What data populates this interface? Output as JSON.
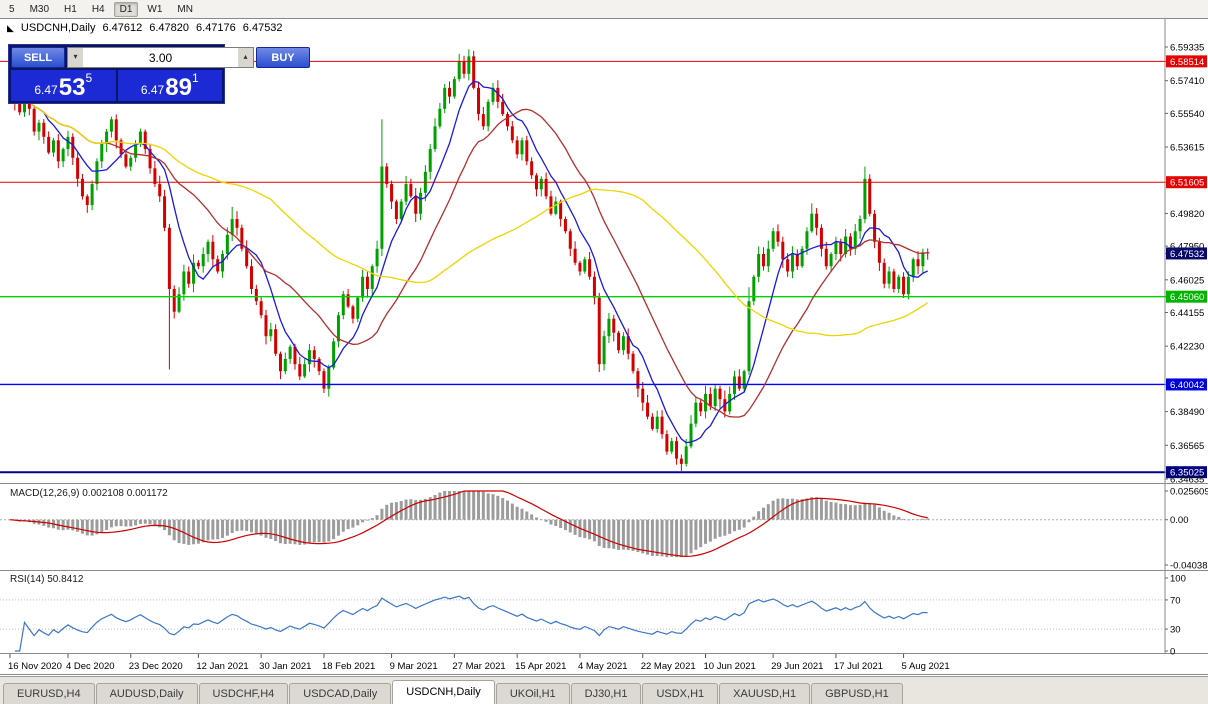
{
  "toolbar": {
    "timeframes": [
      {
        "label": "5",
        "active": false
      },
      {
        "label": "M30",
        "active": false
      },
      {
        "label": "H1",
        "active": false
      },
      {
        "label": "H4",
        "active": false
      },
      {
        "label": "D1",
        "active": true
      },
      {
        "label": "W1",
        "active": false
      },
      {
        "label": "MN",
        "active": false
      }
    ]
  },
  "window": {
    "title": {
      "symbol_period": "USDCNH,Daily",
      "open": "6.47612",
      "high": "6.47820",
      "low": "6.47176",
      "close": "6.47532"
    }
  },
  "trade_panel": {
    "sell_label": "SELL",
    "buy_label": "BUY",
    "lot_value": "3.00",
    "sell_price": {
      "prefix": "6.47",
      "big": "53",
      "sup": "5"
    },
    "buy_price": {
      "prefix": "6.47",
      "big": "89",
      "sup": "1"
    }
  },
  "chart_data": {
    "type": "candlestick",
    "symbol": "USDCNH",
    "timeframe": "Daily",
    "current_bar": {
      "open": 6.47612,
      "high": 6.4782,
      "low": 6.47176,
      "close": 6.47532
    },
    "up_color": "#00a000",
    "down_color": "#d40000",
    "price_axis": {
      "top": 6.5985,
      "bottom": 6.3435,
      "ticks": [
        {
          "label": "6.59335"
        },
        {
          "label": "6.58514",
          "bg": "#e60000"
        },
        {
          "label": "6.57410"
        },
        {
          "label": "6.55540"
        },
        {
          "label": "6.53615"
        },
        {
          "label": "6.51605",
          "bg": "#e60000"
        },
        {
          "label": "6.49820"
        },
        {
          "label": "6.47950"
        },
        {
          "label": "6.47532",
          "bg": "#09096b"
        },
        {
          "label": "6.46025"
        },
        {
          "label": "6.45060",
          "bg": "#00b400"
        },
        {
          "label": "6.44155"
        },
        {
          "label": "6.42230"
        },
        {
          "label": "6.40042",
          "bg": "#0000dc"
        },
        {
          "label": "6.38490"
        },
        {
          "label": "6.36565"
        },
        {
          "label": "6.35025",
          "bg": "#000080"
        },
        {
          "label": "6.34635"
        }
      ]
    },
    "hlines": [
      {
        "value": 6.58514,
        "color": "#e60000",
        "width": 1
      },
      {
        "value": 6.51605,
        "color": "#e60000",
        "width": 1
      },
      {
        "value": 6.4506,
        "color": "#00d200",
        "width": 1.4
      },
      {
        "value": 6.40042,
        "color": "#0000ff",
        "width": 1.4
      },
      {
        "value": 6.35025,
        "color": "#000090",
        "width": 2
      }
    ],
    "current_price": {
      "value": 6.47532,
      "label": "6.47532",
      "bg": "#09096b"
    },
    "moving_averages": [
      {
        "period": 8,
        "color": "#1a1ae0"
      },
      {
        "period": 21,
        "color": "#b03030"
      },
      {
        "period": 55,
        "color": "#eed400"
      }
    ],
    "first_open": 6.574,
    "closes": [
      6.57,
      6.562,
      6.556,
      6.565,
      6.558,
      6.545,
      6.55,
      6.542,
      6.533,
      6.54,
      6.528,
      6.535,
      6.542,
      6.53,
      6.518,
      6.508,
      6.503,
      6.515,
      6.528,
      6.538,
      6.545,
      6.552,
      6.54,
      6.532,
      6.525,
      6.53,
      6.538,
      6.545,
      6.535,
      6.524,
      6.515,
      6.508,
      6.49,
      6.455,
      6.442,
      6.452,
      6.465,
      6.458,
      6.47,
      6.468,
      6.475,
      6.482,
      6.472,
      6.465,
      6.475,
      6.486,
      6.495,
      6.49,
      6.478,
      6.468,
      6.455,
      6.448,
      6.44,
      6.428,
      6.432,
      6.418,
      6.408,
      6.415,
      6.422,
      6.412,
      6.405,
      6.412,
      6.42,
      6.415,
      6.408,
      6.398,
      6.41,
      6.425,
      6.44,
      6.452,
      6.445,
      6.438,
      6.45,
      6.462,
      6.455,
      6.468,
      6.478,
      6.525,
      6.515,
      6.505,
      6.495,
      6.505,
      6.515,
      6.508,
      6.498,
      6.51,
      6.522,
      6.535,
      6.548,
      6.558,
      6.57,
      6.565,
      6.575,
      6.585,
      6.578,
      6.588,
      6.57,
      6.555,
      6.548,
      6.562,
      6.57,
      6.562,
      6.555,
      6.548,
      6.54,
      6.532,
      6.54,
      6.528,
      6.52,
      6.512,
      6.518,
      6.508,
      6.498,
      6.505,
      6.495,
      6.488,
      6.478,
      6.47,
      6.465,
      6.472,
      6.462,
      6.45,
      6.412,
      6.428,
      6.438,
      6.43,
      6.42,
      6.428,
      6.418,
      6.408,
      6.398,
      6.39,
      6.382,
      6.375,
      6.382,
      6.372,
      6.362,
      6.368,
      6.358,
      6.355,
      6.365,
      6.378,
      6.39,
      6.385,
      6.395,
      6.388,
      6.398,
      6.392,
      6.385,
      6.395,
      6.405,
      6.398,
      6.408,
      6.448,
      6.462,
      6.475,
      6.468,
      6.478,
      6.488,
      6.482,
      6.472,
      6.465,
      6.475,
      6.468,
      6.478,
      6.488,
      6.498,
      6.49,
      6.478,
      6.468,
      6.475,
      6.482,
      6.475,
      6.485,
      6.478,
      6.488,
      6.495,
      6.518,
      6.498,
      6.482,
      6.47,
      6.458,
      6.465,
      6.455,
      6.462,
      6.452,
      6.462,
      6.472,
      6.468,
      6.476,
      6.47532
    ],
    "wick_overrides": {
      "16": {
        "l": 6.4985
      },
      "33": {
        "l": 6.409
      },
      "46": {
        "h": 6.502
      },
      "65": {
        "l": 6.3955
      },
      "77": {
        "h": 6.552
      },
      "95": {
        "h": 6.592
      },
      "122": {
        "l": 6.4075
      },
      "139": {
        "l": 6.351
      },
      "153": {
        "h": 6.456
      },
      "166": {
        "h": 6.504
      },
      "177": {
        "h": 6.525
      },
      "190": {
        "h": 6.4782,
        "l": 6.47176
      }
    },
    "x_ticks": [
      {
        "label": "16 Nov 2020",
        "index": 0
      },
      {
        "label": "4 Dec 2020",
        "index": 12
      },
      {
        "label": "23 Dec 2020",
        "index": 25
      },
      {
        "label": "12 Jan 2021",
        "index": 39
      },
      {
        "label": "30 Jan 2021",
        "index": 52
      },
      {
        "label": "18 Feb 2021",
        "index": 65
      },
      {
        "label": "9 Mar 2021",
        "index": 79
      },
      {
        "label": "27 Mar 2021",
        "index": 92
      },
      {
        "label": "15 Apr 2021",
        "index": 105
      },
      {
        "label": "4 May 2021",
        "index": 118
      },
      {
        "label": "22 May 2021",
        "index": 131
      },
      {
        "label": "10 Jun 2021",
        "index": 144
      },
      {
        "label": "29 Jun 2021",
        "index": 158
      },
      {
        "label": "17 Jul 2021",
        "index": 171
      },
      {
        "label": "5 Aug 2021",
        "index": 185
      }
    ]
  },
  "macd": {
    "label": "MACD(12,26,9)",
    "values": "0.002108 0.001172",
    "fast": 12,
    "slow": 26,
    "signal": 9,
    "axis": {
      "max": 0.025609,
      "min": -0.04038
    },
    "axis_labels": [
      "0.025609",
      "0.00",
      "-0.04038"
    ],
    "histogram_color": "#9c9c9c",
    "signal_color": "#cc0000"
  },
  "rsi": {
    "label": "RSI(14)",
    "value": "50.8412",
    "period": 14,
    "axis_labels": [
      "100",
      "70",
      "30",
      "0"
    ],
    "levels": [
      70,
      30
    ],
    "line_color": "#3b76c8"
  },
  "tabs": [
    {
      "label": "EURUSD,H4",
      "active": false
    },
    {
      "label": "AUDUSD,Daily",
      "active": false
    },
    {
      "label": "USDCHF,H4",
      "active": false
    },
    {
      "label": "USDCAD,Daily",
      "active": false
    },
    {
      "label": "USDCNH,Daily",
      "active": true
    },
    {
      "label": "UKOil,H1",
      "active": false
    },
    {
      "label": "DJ30,H1",
      "active": false
    },
    {
      "label": "USDX,H1",
      "active": false
    },
    {
      "label": "XAUUSD,H1",
      "active": false
    },
    {
      "label": "GBPUSD,H1",
      "active": false
    }
  ],
  "colors": {
    "buy_sell_button": "#3a5fd9",
    "price_display_bg": "#1b2ad4",
    "panel_bg": "#0b1566",
    "chart_bg": "#ffffff",
    "separator": "#8a8a8a"
  }
}
